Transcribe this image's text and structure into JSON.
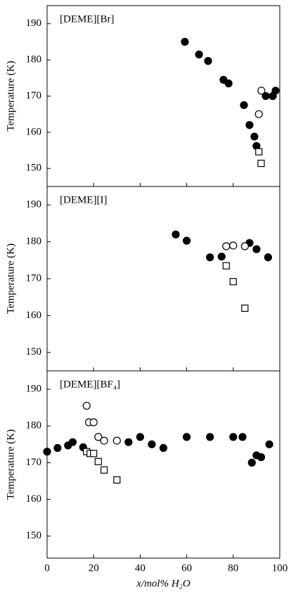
{
  "chart_data": [
    {
      "type": "scatter",
      "title": "[DEME][Br]",
      "ylabel": "Temperature (K)",
      "ylim": [
        145,
        195
      ],
      "yticks": [
        150,
        160,
        170,
        180,
        190
      ],
      "series": [
        {
          "marker": "circle-filled",
          "color": "#000000",
          "x": [
            59.2,
            65.3,
            69.2,
            75.8,
            78,
            84.6,
            87,
            89.1,
            90,
            94,
            97,
            98.2
          ],
          "values": [
            185,
            181.5,
            179.7,
            174.5,
            173.5,
            167.5,
            162,
            158.8,
            156.2,
            170,
            170,
            171.5
          ]
        },
        {
          "marker": "circle-open",
          "color": "#000000",
          "x": [
            92.1,
            91
          ],
          "values": [
            171.5,
            165
          ]
        },
        {
          "marker": "square-open",
          "color": "#000000",
          "x": [
            91,
            92
          ],
          "values": [
            154.6,
            151.4
          ]
        }
      ]
    },
    {
      "type": "scatter",
      "title": "[DEME][I]",
      "ylabel": "Temperature (K)",
      "ylim": [
        145,
        195
      ],
      "yticks": [
        150,
        160,
        170,
        180,
        190
      ],
      "series": [
        {
          "marker": "circle-filled",
          "color": "#000000",
          "x": [
            55.3,
            60,
            70,
            75,
            87,
            90,
            95
          ],
          "values": [
            182,
            180.3,
            175.8,
            176,
            179.7,
            178,
            175.8
          ]
        },
        {
          "marker": "circle-open",
          "color": "#000000",
          "x": [
            77,
            80,
            85
          ],
          "values": [
            178.8,
            179,
            178.8
          ]
        },
        {
          "marker": "square-open",
          "color": "#000000",
          "x": [
            77,
            80,
            85
          ],
          "values": [
            173.5,
            169.2,
            162
          ]
        }
      ]
    },
    {
      "type": "scatter",
      "title": "[DEME][BF₄]",
      "ylabel": "Temperature (K)",
      "ylim": [
        144,
        195
      ],
      "yticks": [
        150,
        160,
        170,
        180,
        190
      ],
      "xlabel": "x/mol% H₂O",
      "xlim": [
        0,
        100
      ],
      "xticks": [
        0,
        20,
        40,
        60,
        80,
        100
      ],
      "series": [
        {
          "marker": "circle-filled",
          "color": "#000000",
          "x": [
            0,
            4.5,
            9,
            11,
            15.5,
            35,
            40,
            45,
            50,
            60,
            70,
            80,
            84,
            88,
            90,
            92,
            95.5
          ],
          "values": [
            173,
            174,
            174.7,
            175.6,
            174.2,
            175.6,
            177,
            175,
            174,
            177,
            177,
            177,
            177,
            170,
            172,
            171.5,
            175
          ]
        },
        {
          "marker": "circle-open",
          "color": "#000000",
          "x": [
            17,
            18,
            20,
            22,
            24.5,
            30
          ],
          "values": [
            185.5,
            181,
            181,
            177,
            176,
            176
          ]
        },
        {
          "marker": "square-open",
          "color": "#000000",
          "x": [
            17,
            18.5,
            20,
            22,
            24.5,
            30
          ],
          "values": [
            173,
            172.5,
            172.5,
            170.3,
            168,
            165.3
          ]
        }
      ]
    }
  ]
}
